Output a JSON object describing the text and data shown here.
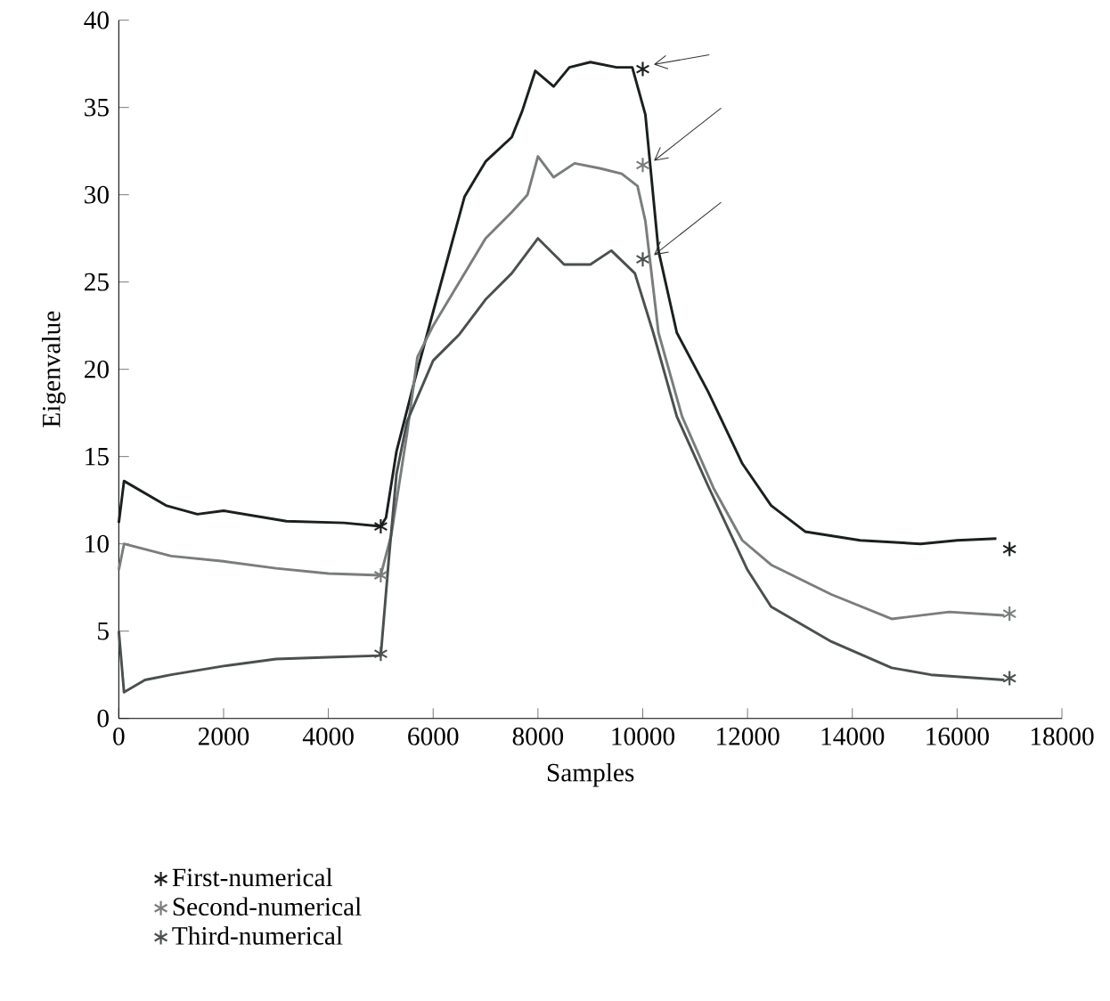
{
  "chart_data": {
    "type": "line",
    "xlabel": "Samples",
    "ylabel": "Eigenvalue",
    "xlim": [
      0,
      18000
    ],
    "ylim": [
      0,
      40
    ],
    "xticks": [
      0,
      2000,
      4000,
      6000,
      8000,
      10000,
      12000,
      14000,
      16000,
      18000
    ],
    "yticks": [
      0,
      5,
      10,
      15,
      20,
      25,
      30,
      35,
      40
    ],
    "grid": false,
    "legend": "bottom left",
    "series": [
      {
        "color": "#1a1f1f",
        "marker": "none",
        "x": [
          0,
          100,
          900,
          1500,
          2000,
          3200,
          4300,
          5000,
          5100,
          5300,
          5650,
          6000,
          6600,
          6800,
          7000,
          7500,
          7700,
          7950,
          8300,
          8600,
          9000,
          9500,
          9800,
          10050,
          10300,
          10650,
          11250,
          11900,
          12450,
          13100,
          14150,
          15300,
          16000,
          16750
        ],
        "values": [
          11.2,
          13.6,
          12.2,
          11.7,
          11.9,
          11.3,
          11.2,
          11.0,
          11.5,
          15.3,
          19.4,
          23.3,
          29.9,
          30.9,
          31.9,
          33.3,
          34.8,
          37.1,
          36.2,
          37.3,
          37.6,
          37.3,
          37.3,
          34.6,
          26.8,
          22.1,
          18.7,
          14.6,
          12.2,
          10.7,
          10.2,
          10.0,
          10.2,
          10.3
        ]
      },
      {
        "color": "#7a7d7d",
        "marker": "none",
        "x": [
          0,
          100,
          1000,
          2000,
          3000,
          4000,
          5000,
          5200,
          5500,
          5700,
          6000,
          6500,
          7000,
          7500,
          7800,
          8000,
          8300,
          8700,
          9200,
          9600,
          9900,
          10050,
          10300,
          10750,
          11350,
          11900,
          12450,
          13600,
          14750,
          15850,
          16900
        ],
        "values": [
          8.5,
          10.0,
          9.3,
          9.0,
          8.6,
          8.3,
          8.2,
          10.5,
          16.3,
          20.7,
          22.5,
          25.0,
          27.5,
          29.0,
          30.0,
          32.2,
          31.0,
          31.8,
          31.5,
          31.2,
          30.5,
          28.5,
          22.1,
          17.3,
          13.2,
          10.2,
          8.8,
          7.1,
          5.7,
          6.1,
          5.9
        ]
      },
      {
        "color": "#4a4f4f",
        "marker": "none",
        "x": [
          0,
          100,
          500,
          1000,
          2000,
          3000,
          4000,
          5000,
          5150,
          5300,
          5500,
          6000,
          6500,
          7000,
          7500,
          8000,
          8500,
          9000,
          9400,
          9850,
          10200,
          10650,
          11250,
          12000,
          12450,
          13600,
          14750,
          15500,
          16900
        ],
        "values": [
          5.0,
          1.5,
          2.2,
          2.5,
          3.0,
          3.4,
          3.5,
          3.6,
          9.0,
          14.0,
          17.0,
          20.5,
          22.0,
          24.0,
          25.5,
          27.5,
          26.0,
          26.0,
          26.8,
          25.5,
          22.1,
          17.3,
          13.3,
          8.5,
          6.4,
          4.4,
          2.9,
          2.5,
          2.2
        ]
      },
      {
        "type": "scatter",
        "name": "First-numerical",
        "color": "#1a1f1f",
        "marker": "cross",
        "x": [
          5000,
          10000,
          17000
        ],
        "values": [
          11.0,
          37.2,
          9.7
        ]
      },
      {
        "type": "scatter",
        "name": "Second-numerical",
        "color": "#7a7d7d",
        "marker": "cross",
        "x": [
          5000,
          10000,
          17000
        ],
        "values": [
          8.2,
          31.7,
          6.0
        ]
      },
      {
        "type": "scatter",
        "name": "Third-numerical",
        "color": "#4a4f4f",
        "marker": "cross",
        "x": [
          5000,
          10000,
          17000
        ],
        "values": [
          3.7,
          26.3,
          2.3
        ]
      }
    ]
  }
}
